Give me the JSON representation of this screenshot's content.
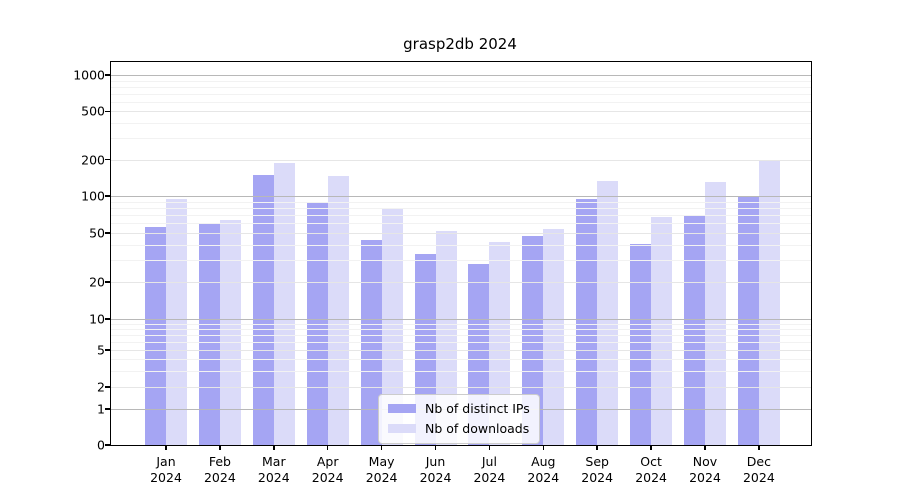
{
  "chart_data": {
    "type": "bar",
    "title": "grasp2db 2024",
    "scale": "symlog",
    "grid": true,
    "legend_position": "lower center",
    "categories": [
      "Jan",
      "Feb",
      "Mar",
      "Apr",
      "May",
      "Jun",
      "Jul",
      "Aug",
      "Sep",
      "Oct",
      "Nov",
      "Dec"
    ],
    "year_label": "2024",
    "y_ticks": [
      1000,
      500,
      200,
      100,
      50,
      20,
      10,
      5,
      2,
      1,
      0
    ],
    "ylim": [
      0,
      1300
    ],
    "series": [
      {
        "name": "Nb of distinct IPs",
        "color": "#a5a5f3",
        "values": [
          56,
          59,
          148,
          88,
          44,
          34,
          28,
          47,
          95,
          41,
          70,
          100
        ]
      },
      {
        "name": "Nb of downloads",
        "color": "#dbdbf9",
        "values": [
          95,
          64,
          186,
          147,
          80,
          52,
          42,
          54,
          134,
          67,
          130,
          196
        ]
      }
    ],
    "colors": {
      "grid_major": "#b8b8b8",
      "grid_minor": "#e6e6e6",
      "grid_faint": "#f2f2f2",
      "spine": "#000000"
    }
  }
}
